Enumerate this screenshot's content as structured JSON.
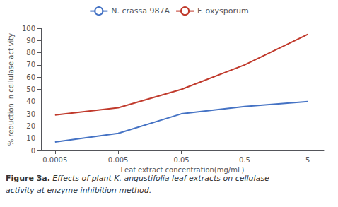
{
  "chart_data": {
    "type": "line",
    "x": [
      0.0005,
      0.005,
      0.05,
      0.5,
      5
    ],
    "series": [
      {
        "name": "N. crassa 987A",
        "color": "#4472C4",
        "values": [
          7,
          14,
          30,
          36,
          40
        ]
      },
      {
        "name": "F. oxysporum",
        "color": "#C0392B",
        "values": [
          29,
          35,
          50,
          70,
          95
        ]
      }
    ],
    "xlabel": "Leaf extract concentration(mg/mL)",
    "ylabel": "% reduction in cellulase activity",
    "log": "x",
    "xlim": [
      0.0003,
      9
    ],
    "xticks": [
      0.0005,
      0.005,
      0.05,
      0.5,
      5
    ],
    "ylim": [
      0,
      100
    ],
    "yticks": [
      0,
      10,
      20,
      30,
      40,
      50,
      60,
      70,
      80,
      90,
      100
    ],
    "grid": false,
    "legend": "top",
    "annotations": [
      "Figure 3a.",
      "Effects of plant K. angustifolia leaf extracts on cellulase",
      "activity at enzyme inhibition method."
    ]
  }
}
